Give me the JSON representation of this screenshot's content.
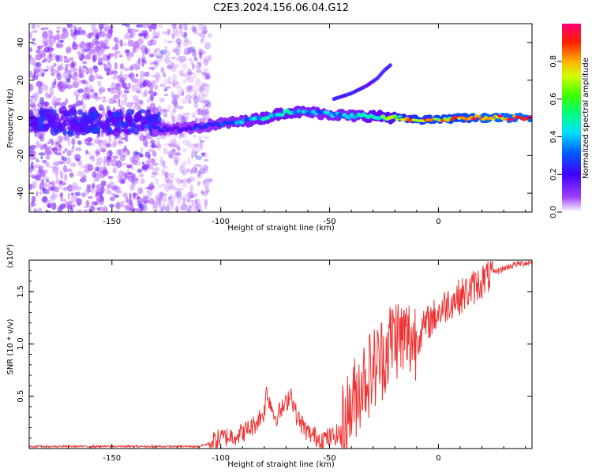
{
  "figure": {
    "title": "C2E3.2024.156.06.04.G12"
  },
  "chart_data": [
    {
      "type": "heatmap",
      "xlabel": "Height of straight line (km)",
      "ylabel": "Frequency (Hz)",
      "xlim": [
        -188,
        43
      ],
      "ylim": [
        -50,
        50
      ],
      "xticks": [
        -150,
        -100,
        -50,
        0
      ],
      "yticks": [
        -40,
        -20,
        0,
        20,
        40
      ],
      "colorbar": {
        "label": "Normalized spectral amplitude",
        "range": [
          0,
          1
        ],
        "ticks": [
          "0.0",
          "0.2",
          "0.4",
          "0.6",
          "0.8"
        ],
        "colormap": [
          "#f2d6ff",
          "#8000ff",
          "#0000ff",
          "#00c8ff",
          "#00ff60",
          "#c8ff00",
          "#ff9000",
          "#ff0060"
        ]
      },
      "ridge": {
        "x": [
          -130,
          -120,
          -110,
          -100,
          -90,
          -80,
          -70,
          -60,
          -50,
          -40,
          -30,
          -20,
          -10,
          0,
          10,
          20,
          30,
          43
        ],
        "y": [
          -6,
          -6,
          -5,
          -3,
          -2,
          0,
          3,
          3,
          2,
          1,
          1,
          0,
          -1,
          -1,
          0,
          0,
          0,
          0
        ],
        "amplitude": [
          0.35,
          0.35,
          0.38,
          0.42,
          0.48,
          0.55,
          0.58,
          0.5,
          0.5,
          0.5,
          0.62,
          0.75,
          0.85,
          0.88,
          0.9,
          0.95,
          0.97,
          0.97
        ]
      },
      "secondary_branch": {
        "x": [
          -48,
          -40,
          -33,
          -28,
          -25,
          -22
        ],
        "y": [
          10,
          13,
          17,
          21,
          25,
          28
        ]
      },
      "noise_extent_x": [
        -188,
        -105
      ]
    },
    {
      "type": "line",
      "xlabel": "Height of straight line (km)",
      "ylabel": "SNR (10 * v/v)",
      "yscale_label": "(x10⁴)",
      "xlim": [
        -188,
        43
      ],
      "ylim": [
        0,
        1.8
      ],
      "xticks": [
        -150,
        -100,
        -50,
        0
      ],
      "yticks": [
        0.5,
        1.0,
        1.5
      ],
      "ytick_labels": [
        "0.5",
        "1.0",
        "1.5"
      ],
      "color": "#ee3333",
      "series": [
        {
          "x": [
            -188,
            -150,
            -110,
            -105,
            -100,
            -95,
            -90,
            -85,
            -80,
            -79,
            -75,
            -70,
            -68,
            -65,
            -60,
            -55,
            -50,
            -45,
            -40,
            -35,
            -30,
            -25,
            -20,
            -18,
            -15,
            -10,
            -5,
            0,
            5,
            10,
            15,
            20,
            25,
            30,
            35,
            43
          ],
          "y": [
            0.02,
            0.02,
            0.02,
            0.05,
            0.1,
            0.12,
            0.15,
            0.22,
            0.35,
            0.55,
            0.3,
            0.42,
            0.55,
            0.3,
            0.15,
            0.1,
            0.1,
            0.15,
            0.4,
            0.65,
            0.75,
            0.9,
            1.1,
            1.05,
            1.05,
            1.05,
            1.2,
            1.3,
            1.4,
            1.45,
            1.52,
            1.6,
            1.68,
            1.72,
            1.76,
            1.78
          ]
        }
      ]
    }
  ]
}
